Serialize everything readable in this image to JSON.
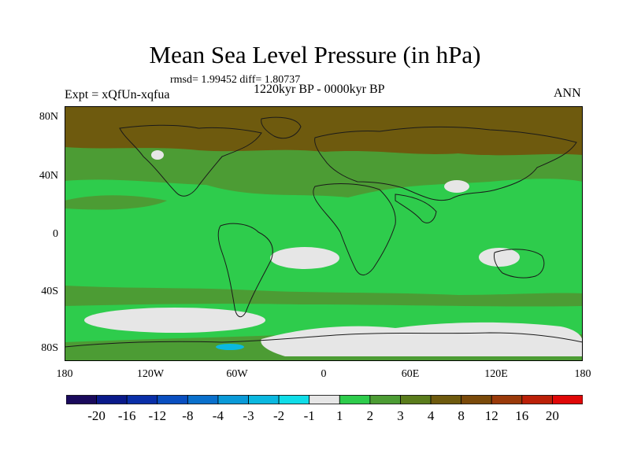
{
  "title": "Mean Sea Level Pressure (in hPa)",
  "stats_line": "rmsd= 1.99452 diff= 1.80737",
  "left_label": "Expt = xQfUn-xqfua",
  "center_label": "1220kyr BP - 0000kyr BP",
  "right_label": "ANN",
  "lat_ticks": [
    "80N",
    "40N",
    "0",
    "40S",
    "80S"
  ],
  "lon_ticks": [
    "180",
    "120W",
    "60W",
    "0",
    "60E",
    "120E",
    "180"
  ],
  "colorbar": {
    "labels": [
      "-20",
      "-16",
      "-12",
      "-8",
      "-4",
      "-3",
      "-2",
      "-1",
      "1",
      "2",
      "3",
      "4",
      "8",
      "12",
      "16",
      "20"
    ],
    "colors": [
      "#1a0a5c",
      "#0a1a8a",
      "#0a2fa8",
      "#0a4fc0",
      "#0a70cc",
      "#0a9ad8",
      "#0bb8e0",
      "#10dde8",
      "#e6e6e6",
      "#2ecc4c",
      "#4c9c34",
      "#5a7c1c",
      "#6e5a0e",
      "#7a4a0a",
      "#9a3a0a",
      "#bb2008",
      "#e00808"
    ]
  },
  "colors": {
    "land_outline": "#1a1a1a",
    "low_anomaly": "#2ecc4c",
    "mid_anomaly": "#4c9c34",
    "high_anomaly": "#6e5a0e",
    "near_zero": "#e6e6e6"
  }
}
